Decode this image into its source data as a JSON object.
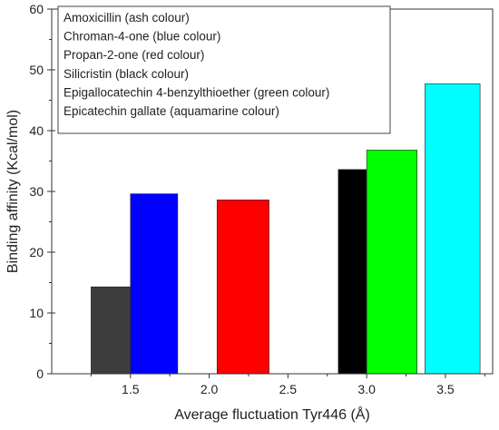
{
  "chart_data": {
    "type": "bar",
    "title": "",
    "xlabel": "Average fluctuation Tyr446 (Å)",
    "ylabel": "Binding affinity (Kcal/mol)",
    "xlim": [
      1.0,
      3.8
    ],
    "ylim": [
      0,
      60
    ],
    "xticks": [
      "1.5",
      "2.0",
      "2.5",
      "3.0",
      "3.5"
    ],
    "yticks": [
      "0",
      "10",
      "20",
      "30",
      "40",
      "50",
      "60"
    ],
    "grid": false,
    "legend_position": "top-left",
    "legend": [
      "Amoxicillin (ash colour)",
      "Chroman-4-one (blue colour)",
      "Propan-2-one (red colour)",
      "Silicristin (black colour)",
      "Epigallocatechin 4-benzylthioether (green colour)",
      "Epicatechin gallate (aquamarine colour)"
    ],
    "bars": [
      {
        "name": "Amoxicillin",
        "x0": 1.25,
        "x1": 1.5,
        "value": 14.3,
        "color": "#3d3d3d"
      },
      {
        "name": "Chroman-4-one",
        "x0": 1.5,
        "x1": 1.8,
        "value": 29.6,
        "color": "#0000ff"
      },
      {
        "name": "Propan-2-one",
        "x0": 2.05,
        "x1": 2.38,
        "value": 28.6,
        "color": "#ff0000"
      },
      {
        "name": "Silicristin",
        "x0": 2.82,
        "x1": 3.0,
        "value": 33.6,
        "color": "#000000"
      },
      {
        "name": "Epigallocatechin 4-benzylthioether",
        "x0": 3.0,
        "x1": 3.32,
        "value": 36.8,
        "color": "#00ff00"
      },
      {
        "name": "Epicatechin gallate",
        "x0": 3.37,
        "x1": 3.72,
        "value": 47.7,
        "color": "#00ffff"
      }
    ]
  }
}
